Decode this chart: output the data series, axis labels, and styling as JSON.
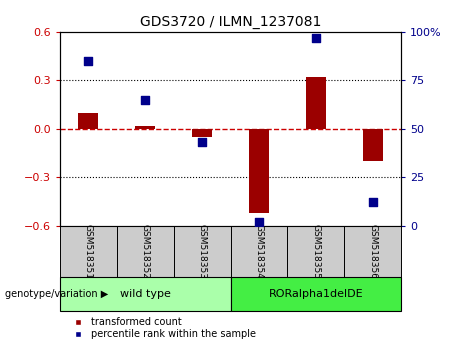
{
  "title": "GDS3720 / ILMN_1237081",
  "categories": [
    "GSM518351",
    "GSM518352",
    "GSM518353",
    "GSM518354",
    "GSM518355",
    "GSM518356"
  ],
  "red_bars": [
    0.1,
    0.02,
    -0.05,
    -0.52,
    0.32,
    -0.2
  ],
  "blue_points": [
    85,
    65,
    43,
    2,
    97,
    12
  ],
  "ylim_left": [
    -0.6,
    0.6
  ],
  "ylim_right": [
    0,
    100
  ],
  "yticks_left": [
    -0.6,
    -0.3,
    0.0,
    0.3,
    0.6
  ],
  "yticks_right": [
    0,
    25,
    50,
    75,
    100
  ],
  "bar_color": "#9B0000",
  "point_color": "#00008B",
  "zero_line_color": "#CC0000",
  "group1_label": "wild type",
  "group2_label": "RORalpha1delDE",
  "group1_color": "#AAFFAA",
  "group2_color": "#44EE44",
  "group1_indices": [
    0,
    1,
    2
  ],
  "group2_indices": [
    3,
    4,
    5
  ],
  "genotype_label": "genotype/variation",
  "legend_red": "transformed count",
  "legend_blue": "percentile rank within the sample",
  "bar_width": 0.35,
  "point_size": 30,
  "gray_box_color": "#CCCCCC"
}
